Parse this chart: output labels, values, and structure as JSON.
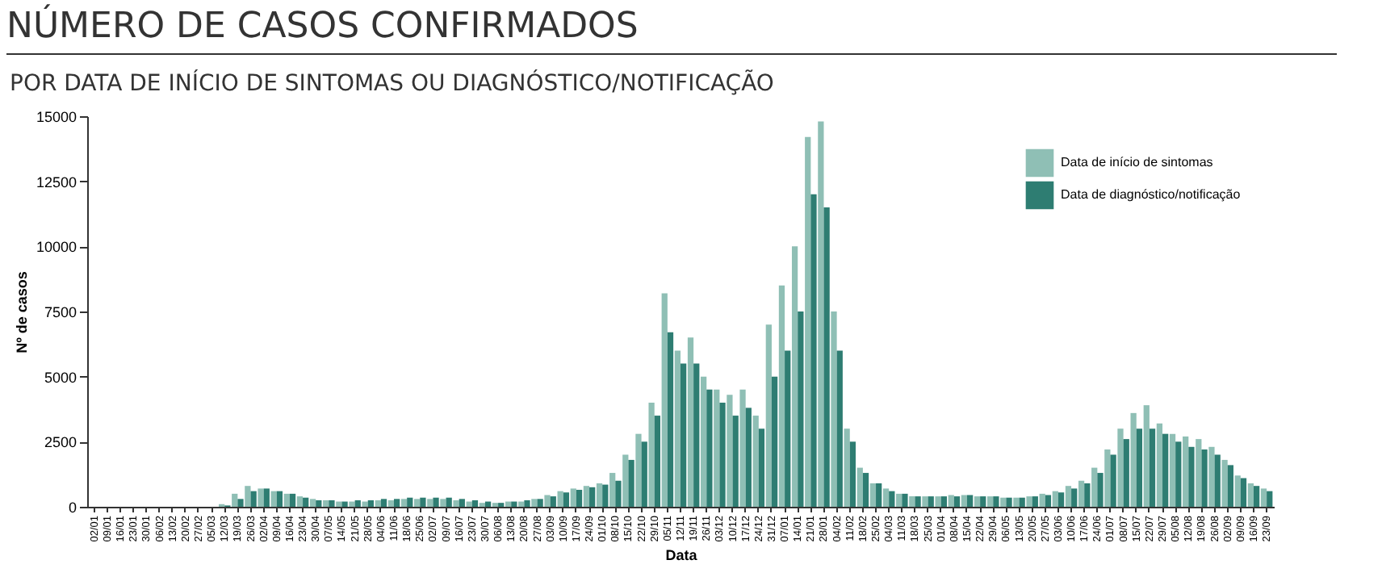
{
  "chart_data": {
    "type": "bar",
    "title": "NÚMERO DE CASOS CONFIRMADOS",
    "subtitle": "POR DATA DE INÍCIO DE SINTOMAS OU DIAGNÓSTICO/NOTIFICAÇÃO",
    "xlabel": "Data",
    "ylabel": "Nº de casos",
    "categories": [
      "02/01",
      "09/01",
      "16/01",
      "23/01",
      "30/01",
      "06/02",
      "13/02",
      "20/02",
      "27/02",
      "05/03",
      "12/03",
      "19/03",
      "26/03",
      "02/04",
      "09/04",
      "16/04",
      "23/04",
      "30/04",
      "07/05",
      "14/05",
      "21/05",
      "28/05",
      "04/06",
      "11/06",
      "18/06",
      "25/06",
      "02/07",
      "09/07",
      "16/07",
      "23/07",
      "30/07",
      "06/08",
      "13/08",
      "20/08",
      "27/08",
      "03/09",
      "10/09",
      "17/09",
      "24/09",
      "01/10",
      "08/10",
      "15/10",
      "22/10",
      "29/10",
      "05/11",
      "12/11",
      "19/11",
      "26/11",
      "03/12",
      "10/12",
      "17/12",
      "24/12",
      "31/12",
      "07/01",
      "14/01",
      "21/01",
      "28/01",
      "04/02",
      "11/02",
      "18/02",
      "25/02",
      "04/03",
      "11/03",
      "18/03",
      "25/03",
      "01/04",
      "08/04",
      "15/04",
      "22/04",
      "29/04",
      "06/05",
      "13/05",
      "20/05",
      "27/05",
      "03/06",
      "10/06",
      "17/06",
      "24/06",
      "01/07",
      "08/07",
      "15/07",
      "22/07",
      "29/07",
      "05/08",
      "12/08",
      "19/08",
      "26/08",
      "02/09",
      "09/09",
      "16/09",
      "23/09"
    ],
    "series": [
      {
        "name": "Data de início de sintomas",
        "color": "#8fbfb5",
        "values": [
          0,
          0,
          0,
          0,
          0,
          0,
          0,
          0,
          0,
          0,
          100,
          500,
          800,
          700,
          600,
          500,
          400,
          300,
          250,
          200,
          200,
          200,
          250,
          250,
          300,
          300,
          300,
          300,
          250,
          200,
          150,
          150,
          200,
          200,
          300,
          450,
          600,
          700,
          800,
          900,
          1300,
          2000,
          2800,
          4000,
          8200,
          6000,
          6500,
          5000,
          4500,
          4300,
          4500,
          3500,
          7000,
          8500,
          10000,
          14200,
          14800,
          7500,
          3000,
          1500,
          900,
          700,
          500,
          400,
          400,
          400,
          450,
          450,
          400,
          400,
          350,
          350,
          400,
          500,
          600,
          800,
          1000,
          1500,
          2200,
          3000,
          3600,
          3900,
          3200,
          2800,
          2700,
          2600,
          2300,
          1800,
          1200,
          900,
          700
        ]
      },
      {
        "name": "Data de diagnóstico/notificação",
        "color": "#2e7d72",
        "values": [
          0,
          0,
          0,
          0,
          0,
          0,
          0,
          0,
          0,
          0,
          50,
          300,
          600,
          700,
          600,
          500,
          350,
          250,
          250,
          200,
          250,
          250,
          300,
          300,
          350,
          350,
          350,
          350,
          300,
          250,
          200,
          150,
          200,
          250,
          300,
          400,
          550,
          650,
          750,
          850,
          1000,
          1800,
          2500,
          3500,
          6700,
          5500,
          5500,
          4500,
          4000,
          3500,
          3800,
          3000,
          5000,
          6000,
          7500,
          12000,
          11500,
          6000,
          2500,
          1300,
          900,
          600,
          500,
          400,
          400,
          400,
          400,
          450,
          400,
          400,
          350,
          350,
          400,
          450,
          550,
          700,
          900,
          1300,
          2000,
          2600,
          3000,
          3000,
          2800,
          2500,
          2300,
          2200,
          2000,
          1600,
          1100,
          800,
          600
        ]
      }
    ],
    "ylim": [
      0,
      15000
    ],
    "yticks": [
      0,
      2500,
      5000,
      7500,
      10000,
      12500,
      15000
    ],
    "legend": "top right"
  }
}
